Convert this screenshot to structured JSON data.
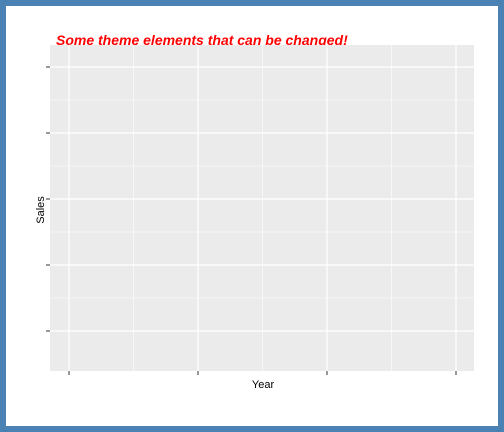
{
  "colors": {
    "frame_border": "#4a82b4",
    "panel_background": "#ebebeb",
    "grid_line": "#ffffff",
    "title": "#ff0000",
    "tick": "#333333"
  },
  "chart_data": {
    "type": "scatter",
    "title": "Some theme elements that can be changed!",
    "xlabel": "Year",
    "ylabel": "Sales",
    "series": [],
    "grid": true,
    "x_major_ticks": 4,
    "y_major_ticks": 5,
    "tick_labels_visible": false,
    "legend": "none"
  }
}
